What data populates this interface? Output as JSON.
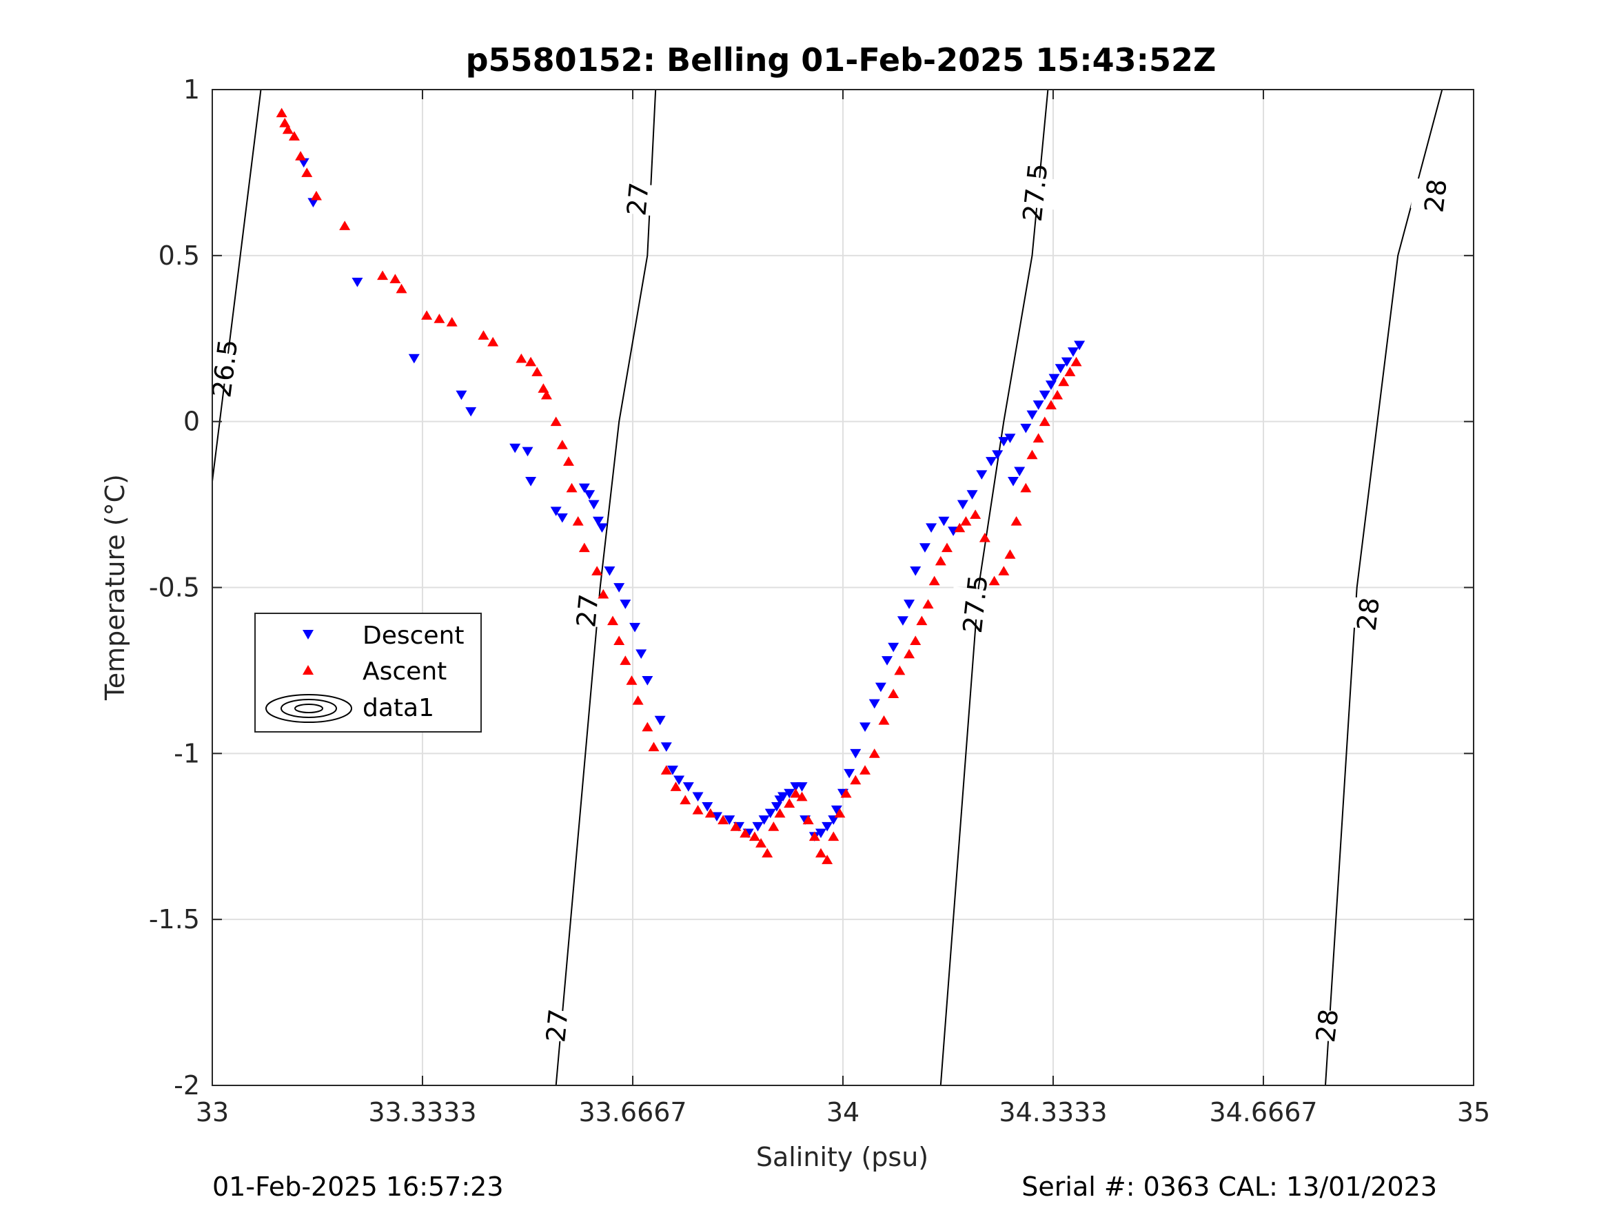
{
  "title": "p5580152: Belling 01-Feb-2025 15:43:52Z",
  "footer": {
    "left": "01-Feb-2025 16:57:23",
    "right": "Serial #: 0363  CAL: 13/01/2023"
  },
  "chart_data": {
    "type": "scatter",
    "xlabel": "Salinity (psu)",
    "ylabel": "Temperature (°C)",
    "xlim": [
      33,
      35
    ],
    "ylim": [
      -2,
      1
    ],
    "xticks": [
      33,
      33.3333,
      33.6667,
      34,
      34.3333,
      34.6667,
      35
    ],
    "xtick_labels": [
      "33",
      "33.3333",
      "33.6667",
      "34",
      "34.3333",
      "34.6667",
      "35"
    ],
    "yticks": [
      -2,
      -1.5,
      -1,
      -0.5,
      0,
      0.5,
      1
    ],
    "ytick_labels": [
      "-2",
      "-1.5",
      "-1",
      "-0.5",
      "0",
      "0.5",
      "1"
    ],
    "grid": true,
    "legend": {
      "placement": "left-middle",
      "entries": [
        "Descent",
        "Ascent",
        "data1"
      ]
    },
    "colors": {
      "descent": "#0000ff",
      "ascent": "#ff0000",
      "contour": "#000000"
    },
    "contours": [
      {
        "label": "26.5",
        "points": [
          [
            33.0,
            -0.18
          ],
          [
            33.077,
            1.0
          ]
        ],
        "label_positions": [
          [
            33.02,
            0.16
          ]
        ]
      },
      {
        "label": "27",
        "points": [
          [
            33.545,
            -2.0
          ],
          [
            33.615,
            -0.5
          ],
          [
            33.645,
            0.0
          ],
          [
            33.69,
            0.5
          ],
          [
            33.703,
            1.0
          ]
        ],
        "label_positions": [
          [
            33.547,
            -1.82
          ],
          [
            33.595,
            -0.57
          ],
          [
            33.675,
            0.67
          ]
        ]
      },
      {
        "label": "27.5",
        "points": [
          [
            34.155,
            -2.0
          ],
          [
            34.215,
            -0.5
          ],
          [
            34.255,
            0.0
          ],
          [
            34.3,
            0.5
          ],
          [
            34.325,
            1.0
          ]
        ],
        "label_positions": [
          [
            34.21,
            -0.55
          ],
          [
            34.305,
            0.69
          ]
        ]
      },
      {
        "label": "28",
        "points": [
          [
            34.765,
            -2.0
          ],
          [
            34.815,
            -0.5
          ],
          [
            34.88,
            0.5
          ],
          [
            34.95,
            1.0
          ]
        ],
        "label_positions": [
          [
            34.768,
            -1.82
          ],
          [
            34.833,
            -0.58
          ],
          [
            34.94,
            0.68
          ]
        ]
      }
    ],
    "series": [
      {
        "name": "Descent",
        "marker": "triangle-down",
        "x": [
          33.145,
          33.16,
          33.23,
          33.32,
          33.395,
          33.41,
          33.48,
          33.5,
          33.505,
          33.545,
          33.555,
          33.59,
          33.598,
          33.605,
          33.612,
          33.618,
          33.63,
          33.645,
          33.655,
          33.67,
          33.68,
          33.69,
          33.71,
          33.72,
          33.73,
          33.74,
          33.755,
          33.77,
          33.785,
          33.8,
          33.82,
          33.835,
          33.85,
          33.865,
          33.875,
          33.885,
          33.895,
          33.9,
          33.905,
          33.915,
          33.925,
          33.935,
          33.94,
          33.955,
          33.965,
          33.975,
          33.985,
          33.99,
          34.0,
          34.01,
          34.02,
          34.035,
          34.05,
          34.06,
          34.07,
          34.08,
          34.095,
          34.105,
          34.115,
          34.13,
          34.14,
          34.16,
          34.175,
          34.19,
          34.205,
          34.22,
          34.235,
          34.245,
          34.255,
          34.265,
          34.27,
          34.28,
          34.29,
          34.3,
          34.31,
          34.32,
          34.33,
          34.335,
          34.345,
          34.355,
          34.365,
          34.375
        ],
        "y": [
          0.78,
          0.66,
          0.42,
          0.19,
          0.08,
          0.03,
          -0.08,
          -0.09,
          -0.18,
          -0.27,
          -0.29,
          -0.2,
          -0.22,
          -0.25,
          -0.3,
          -0.32,
          -0.45,
          -0.5,
          -0.55,
          -0.62,
          -0.7,
          -0.78,
          -0.9,
          -0.98,
          -1.05,
          -1.08,
          -1.1,
          -1.13,
          -1.16,
          -1.19,
          -1.2,
          -1.22,
          -1.24,
          -1.22,
          -1.2,
          -1.18,
          -1.16,
          -1.14,
          -1.13,
          -1.12,
          -1.1,
          -1.1,
          -1.2,
          -1.25,
          -1.24,
          -1.22,
          -1.2,
          -1.17,
          -1.12,
          -1.06,
          -1.0,
          -0.92,
          -0.85,
          -0.8,
          -0.72,
          -0.68,
          -0.6,
          -0.55,
          -0.45,
          -0.38,
          -0.32,
          -0.3,
          -0.33,
          -0.25,
          -0.22,
          -0.16,
          -0.12,
          -0.1,
          -0.06,
          -0.05,
          -0.18,
          -0.15,
          -0.02,
          0.02,
          0.05,
          0.08,
          0.11,
          0.13,
          0.16,
          0.18,
          0.21,
          0.23
        ]
      },
      {
        "name": "Ascent",
        "marker": "triangle-up",
        "x": [
          33.11,
          33.115,
          33.12,
          33.13,
          33.14,
          33.15,
          33.165,
          33.21,
          33.27,
          33.29,
          33.3,
          33.34,
          33.36,
          33.38,
          33.43,
          33.445,
          33.49,
          33.505,
          33.515,
          33.525,
          33.53,
          33.545,
          33.555,
          33.565,
          33.57,
          33.58,
          33.59,
          33.61,
          33.62,
          33.635,
          33.645,
          33.655,
          33.665,
          33.675,
          33.69,
          33.7,
          33.72,
          33.735,
          33.75,
          33.77,
          33.79,
          33.81,
          33.83,
          33.845,
          33.86,
          33.87,
          33.88,
          33.89,
          33.9,
          33.915,
          33.925,
          33.935,
          33.945,
          33.955,
          33.965,
          33.975,
          33.985,
          33.995,
          34.005,
          34.02,
          34.035,
          34.05,
          34.065,
          34.08,
          34.09,
          34.105,
          34.115,
          34.125,
          34.135,
          34.145,
          34.155,
          34.165,
          34.185,
          34.195,
          34.21,
          34.225,
          34.24,
          34.255,
          34.265,
          34.275,
          34.29,
          34.3,
          34.31,
          34.32,
          34.33,
          34.34,
          34.35,
          34.36,
          34.37
        ],
        "y": [
          0.93,
          0.9,
          0.88,
          0.86,
          0.8,
          0.75,
          0.68,
          0.59,
          0.44,
          0.43,
          0.4,
          0.32,
          0.31,
          0.3,
          0.26,
          0.24,
          0.19,
          0.18,
          0.15,
          0.1,
          0.08,
          0.0,
          -0.07,
          -0.12,
          -0.2,
          -0.3,
          -0.38,
          -0.45,
          -0.52,
          -0.6,
          -0.66,
          -0.72,
          -0.78,
          -0.84,
          -0.92,
          -0.98,
          -1.05,
          -1.1,
          -1.14,
          -1.17,
          -1.18,
          -1.2,
          -1.22,
          -1.24,
          -1.25,
          -1.27,
          -1.3,
          -1.22,
          -1.18,
          -1.15,
          -1.12,
          -1.13,
          -1.2,
          -1.25,
          -1.3,
          -1.32,
          -1.25,
          -1.18,
          -1.12,
          -1.08,
          -1.05,
          -1.0,
          -0.9,
          -0.82,
          -0.75,
          -0.7,
          -0.66,
          -0.6,
          -0.55,
          -0.48,
          -0.42,
          -0.38,
          -0.32,
          -0.3,
          -0.28,
          -0.35,
          -0.48,
          -0.45,
          -0.4,
          -0.3,
          -0.2,
          -0.1,
          -0.05,
          0.0,
          0.05,
          0.08,
          0.12,
          0.15,
          0.18
        ]
      }
    ]
  }
}
